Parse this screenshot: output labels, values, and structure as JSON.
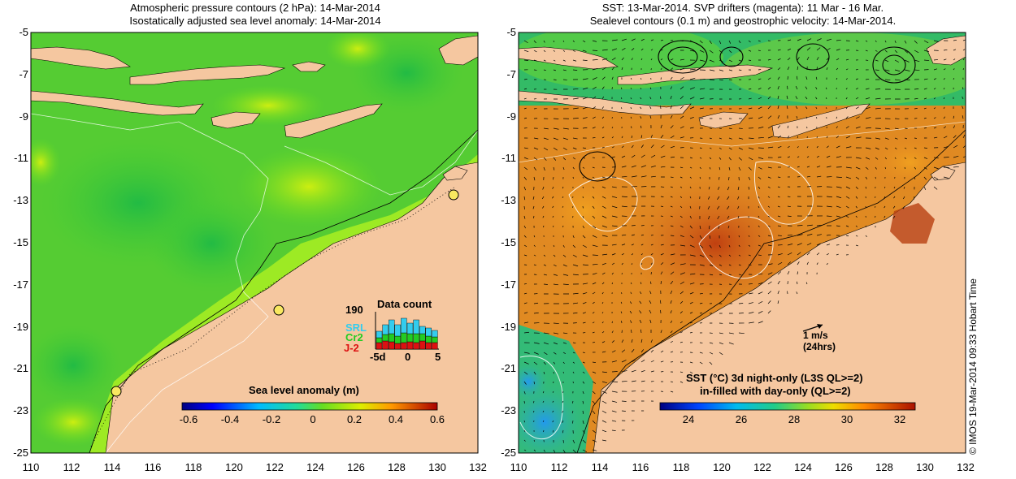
{
  "left_panel": {
    "title_line1": "Atmospheric pressure contours (2 hPa): 14-Mar-2014",
    "title_line2": "Isostatically adjusted sea level anomaly: 14-Mar-2014",
    "colorbar_label": "Sea level anomaly (m)",
    "colorbar_ticks": [
      "-0.6",
      "-0.4",
      "-0.2",
      "0",
      "0.2",
      "0.4",
      "0.6"
    ],
    "data_count": {
      "title": "Data count",
      "max_label": "190",
      "series": [
        {
          "name": "SRL",
          "color": "#33ccee"
        },
        {
          "name": "Cr2",
          "color": "#22cc22"
        },
        {
          "name": "J-2",
          "color": "#dd1111"
        }
      ],
      "axis_labels": [
        "-5d",
        "0",
        "5"
      ]
    },
    "colors": {
      "sea_mid": "#44cc33",
      "sea_high": "#aaee22",
      "land": "#f5c7a0"
    }
  },
  "right_panel": {
    "title_line1": "SST: 13-Mar-2014. SVP drifters (magenta): 11 Mar - 16 Mar.",
    "title_line2": "Sealevel contours (0.1 m) and geostrophic velocity: 14-Mar-2014.",
    "scale_arrow_label1": "1 m/s",
    "scale_arrow_label2": "(24hrs)",
    "colorbar_label1": "SST (°C)  3d night-only (L3S QL>=2)",
    "colorbar_label2": "in-filled with day-only (QL>=2)",
    "colorbar_ticks": [
      "24",
      "26",
      "28",
      "30",
      "32"
    ],
    "colors": {
      "sea_warm": "#e08020",
      "sea_cool": "#22aa55",
      "land": "#f5c7a0"
    }
  },
  "axes": {
    "y_ticks": [
      "-5",
      "-7",
      "-9",
      "-11",
      "-13",
      "-15",
      "-17",
      "-19",
      "-21",
      "-23",
      "-25"
    ],
    "x_ticks": [
      "110",
      "112",
      "114",
      "116",
      "118",
      "120",
      "122",
      "124",
      "126",
      "128",
      "130",
      "132"
    ]
  },
  "credit": "© IMOS 19-Mar-2014 09:33 Hobart Time"
}
